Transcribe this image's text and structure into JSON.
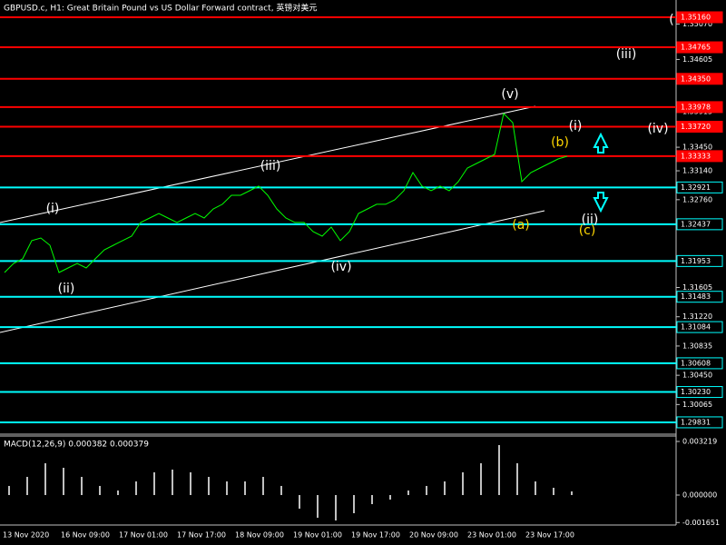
{
  "chart_data": [
    {
      "type": "line",
      "title": "GBPUSD.c, H1:  Great Britain Pound vs US Dollar Forward contract, 英镑对美元",
      "color": "#00ff00",
      "values": [
        1.31802,
        1.31922,
        1.31982,
        1.32221,
        1.32256,
        1.32161,
        1.31802,
        1.31862,
        1.31922,
        1.31862,
        1.31982,
        1.32101,
        1.32161,
        1.32221,
        1.3228,
        1.3246,
        1.32519,
        1.32579,
        1.32519,
        1.3246,
        1.32519,
        1.32579,
        1.32519,
        1.32639,
        1.32699,
        1.32818,
        1.32818,
        1.32878,
        1.32938,
        1.32818,
        1.32639,
        1.32519,
        1.3246,
        1.3246,
        1.3234,
        1.3228,
        1.324,
        1.32221,
        1.3234,
        1.32579,
        1.32639,
        1.32699,
        1.32699,
        1.32758,
        1.32878,
        1.33117,
        1.32938,
        1.32878,
        1.32938,
        1.32878,
        1.32997,
        1.33176,
        1.33236,
        1.33296,
        1.33356,
        1.33893,
        1.33774,
        1.32997,
        1.33117,
        1.33176,
        1.33236,
        1.33296,
        1.33332
      ],
      "ylim": [
        1.29675,
        1.35387
      ],
      "yticks": [
        {
          "value": 1.3507,
          "label": "1.35070"
        },
        {
          "value": 1.34605,
          "label": "1.34605"
        },
        {
          "value": 1.33915,
          "label": "1.33915"
        },
        {
          "value": 1.3345,
          "label": "1.33450"
        },
        {
          "value": 1.3314,
          "label": "1.33140"
        },
        {
          "value": 1.3276,
          "label": "1.32760"
        },
        {
          "value": 1.31605,
          "label": "1.31605"
        },
        {
          "value": 1.3122,
          "label": "1.31220"
        },
        {
          "value": 1.30835,
          "label": "1.30835"
        },
        {
          "value": 1.3045,
          "label": "1.30450"
        },
        {
          "value": 1.30065,
          "label": "1.30065"
        }
      ],
      "levels": [
        {
          "value": 1.3516,
          "label": "1.35160",
          "color": "#ff0000"
        },
        {
          "value": 1.34765,
          "label": "1.34765",
          "color": "#ff0000"
        },
        {
          "value": 1.3435,
          "label": "1.34350",
          "color": "#ff0000"
        },
        {
          "value": 1.33978,
          "label": "1.33978",
          "color": "#ff0000"
        },
        {
          "value": 1.3372,
          "label": "1.33720",
          "color": "#ff0000"
        },
        {
          "value": 1.33333,
          "label": "1.33333",
          "color": "#ff0000"
        },
        {
          "value": 1.32921,
          "label": "1.32921",
          "color": "#00ffff"
        },
        {
          "value": 1.32437,
          "label": "1.32437",
          "color": "#00ffff"
        },
        {
          "value": 1.31953,
          "label": "1.31953",
          "color": "#00ffff"
        },
        {
          "value": 1.31483,
          "label": "1.31483",
          "color": "#00ffff"
        },
        {
          "value": 1.31084,
          "label": "1.31084",
          "color": "#00ffff"
        },
        {
          "value": 1.30608,
          "label": "1.30608",
          "color": "#00ffff"
        },
        {
          "value": 1.3023,
          "label": "1.30230",
          "color": "#00ffff"
        },
        {
          "value": 1.29831,
          "label": "1.29831",
          "color": "#00ffff"
        }
      ],
      "annotations": [
        {
          "text": "(i)",
          "color": "#ffffff"
        },
        {
          "text": "(ii)",
          "color": "#ffffff"
        },
        {
          "text": "(iii)",
          "color": "#ffffff"
        },
        {
          "text": "(iv)",
          "color": "#ffffff"
        },
        {
          "text": "(v)",
          "color": "#ffffff"
        },
        {
          "text": "(i)",
          "color": "#ffffff"
        },
        {
          "text": "(b)",
          "color": "#ffd700"
        },
        {
          "text": "(a)",
          "color": "#ffd700"
        },
        {
          "text": "(ii)",
          "color": "#ffffff"
        },
        {
          "text": "(c)",
          "color": "#ffd700"
        },
        {
          "text": "(iii)",
          "color": "#ffffff"
        },
        {
          "text": "(iv)",
          "color": "#ffffff"
        },
        {
          "text": "(",
          "color": "#ffffff"
        }
      ],
      "x_labels": [
        "13 Nov 2020",
        "16 Nov 09:00",
        "17 Nov 01:00",
        "17 Nov 17:00",
        "18 Nov 09:00",
        "19 Nov 01:00",
        "19 Nov 17:00",
        "20 Nov 09:00",
        "23 Nov 01:00",
        "23 Nov 17:00"
      ]
    },
    {
      "type": "bar",
      "title": "MACD(12,26,9) 0.000382 0.000379",
      "color": "#c0c0c0",
      "values": [
        0.000546,
        0.001091,
        0.001909,
        0.001637,
        0.001091,
        0.000546,
        0.000273,
        0.000818,
        0.001364,
        0.001528,
        0.001364,
        0.001091,
        0.000818,
        0.000818,
        0.001091,
        0.000546,
        -0.000818,
        -0.001364,
        -0.001528,
        -0.001091,
        -0.000546,
        -0.000273,
        0.000273,
        0.000546,
        0.000818,
        0.001364,
        0.001909,
        0.003001,
        0.001909,
        0.000818,
        0.000436,
        0.000218
      ],
      "ylim": [
        -0.0018,
        0.003546
      ],
      "yticks": [
        0.003219,
        {
          "value": 0,
          "label": "0.000000"
        },
        -0.001651
      ]
    }
  ]
}
